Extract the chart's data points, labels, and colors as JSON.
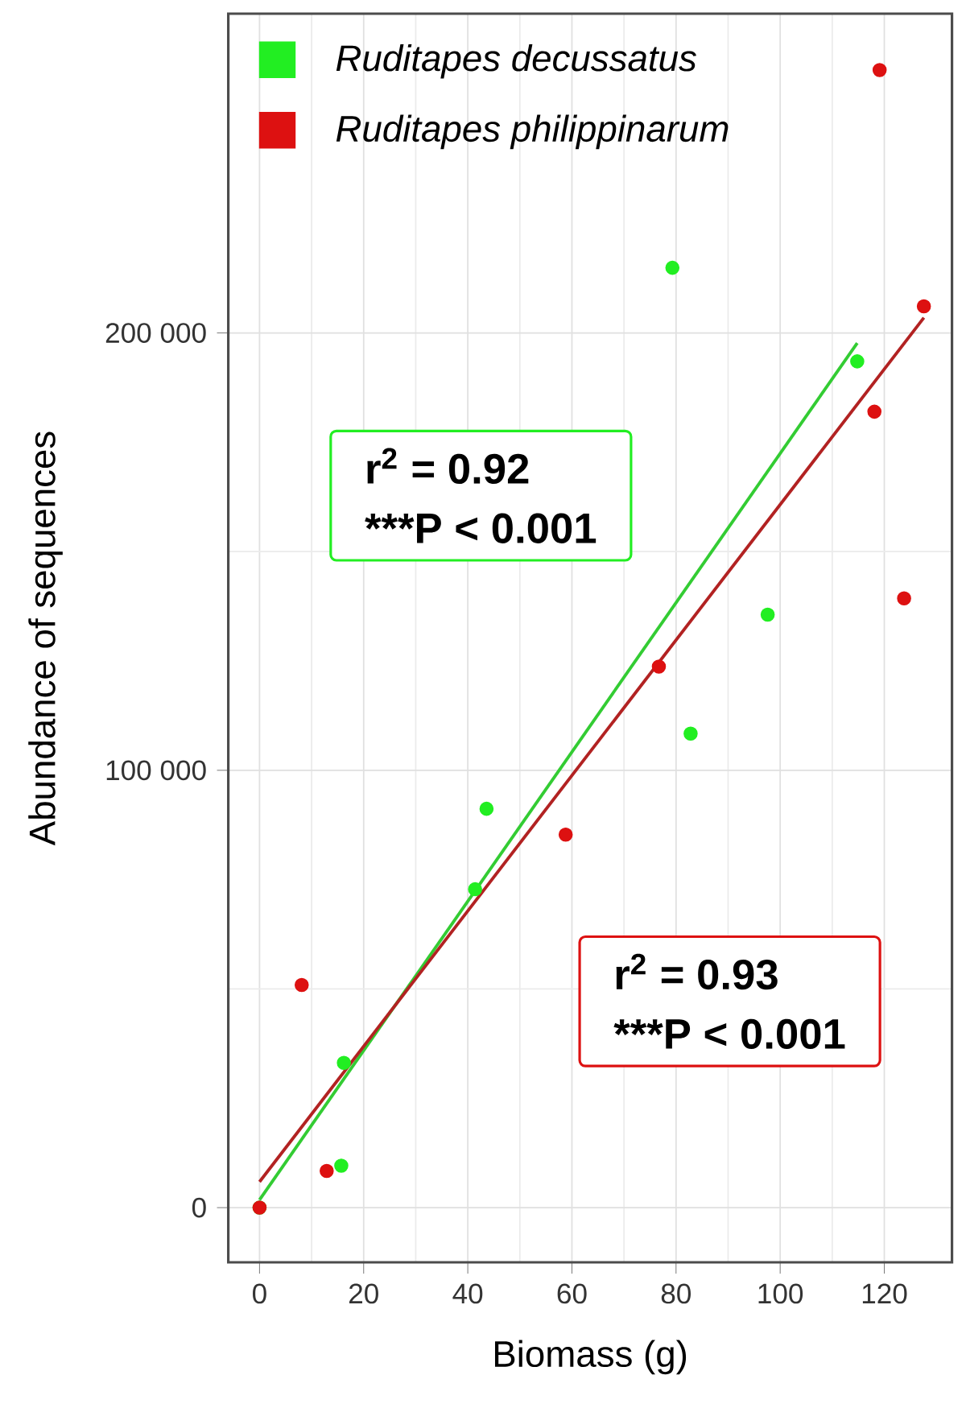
{
  "chart_data": {
    "type": "scatter",
    "xlabel": "Biomass (g)",
    "ylabel": "Abundance of sequences",
    "xlim": [
      -6,
      133
    ],
    "ylim": [
      -12500,
      273000
    ],
    "xticks": [
      0,
      20,
      40,
      60,
      80,
      100,
      120
    ],
    "yticks": [
      0,
      {
        "value": 100000,
        "label": "100 000"
      },
      {
        "value": 200000,
        "label": "200 000"
      }
    ],
    "grid": true,
    "legend": "top left",
    "line_style": "solid",
    "series": [
      {
        "name": "Ruditapes decussatus",
        "marker": "circle",
        "color": "#22ee22",
        "x": [
          0,
          16.2,
          15.7,
          41.4,
          43.6,
          79.3,
          82.8,
          97.6,
          114.8
        ],
        "values": [
          0,
          33100,
          9600,
          72800,
          91200,
          214900,
          108400,
          135600,
          193500
        ]
      },
      {
        "name": "Ruditapes philippinarum",
        "marker": "circle",
        "color": "#dd1111",
        "x": [
          0,
          8.1,
          12.9,
          58.8,
          76.7,
          118.1,
          119.1,
          123.8,
          127.6
        ],
        "values": [
          0,
          50900,
          8400,
          85300,
          123700,
          182000,
          260100,
          139300,
          206100
        ]
      },
      {
        "type": "line",
        "marker": "none",
        "color": "#33cc33",
        "x": [
          0,
          114.8
        ],
        "values": [
          1800,
          197700
        ]
      },
      {
        "type": "line",
        "marker": "none",
        "color": "#b22222",
        "x": [
          0,
          127.6
        ],
        "values": [
          5900,
          203500
        ]
      }
    ],
    "annotations": [
      "r$^{2}$ = 0.92",
      "***P < 0.001",
      "r$^{2}$ = 0.93",
      "***P < 0.001"
    ]
  }
}
